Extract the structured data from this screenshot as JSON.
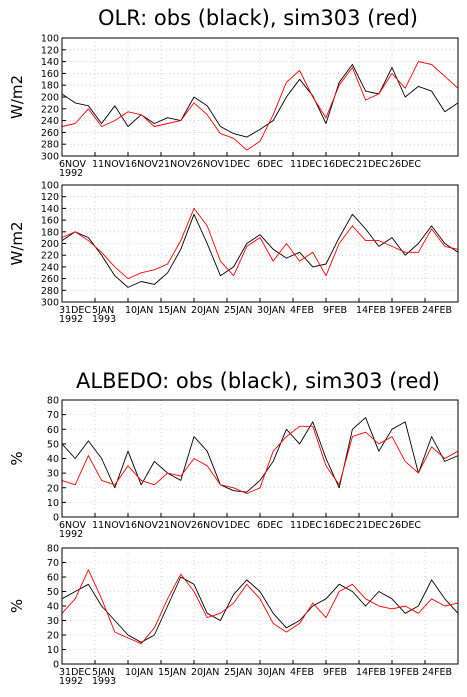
{
  "figure": {
    "olr_title": "OLR: obs (black), sim303 (red)",
    "albedo_title": "ALBEDO: obs (black), sim303 (red)",
    "colors": {
      "obs": "#000000",
      "sim": "#ff0000",
      "grid": "#b0b0b0"
    }
  },
  "chart_data": [
    {
      "type": "line",
      "panel": "OLR 1992 Nov-Dec",
      "ylabel": "W/m2",
      "yaxis_inverted": true,
      "ylim": [
        300,
        100
      ],
      "yticks": [
        100,
        120,
        140,
        160,
        180,
        200,
        220,
        240,
        260,
        280,
        300
      ],
      "xlim": [
        0,
        60
      ],
      "xticks": [
        {
          "x": 0,
          "label": "6NOV",
          "sub": "1992"
        },
        {
          "x": 5,
          "label": "11NOV"
        },
        {
          "x": 10,
          "label": "16NOV"
        },
        {
          "x": 15,
          "label": "21NOV"
        },
        {
          "x": 20,
          "label": "26NOV"
        },
        {
          "x": 25,
          "label": "1DEC"
        },
        {
          "x": 30,
          "label": "6DEC"
        },
        {
          "x": 35,
          "label": "11DEC"
        },
        {
          "x": 40,
          "label": "16DEC"
        },
        {
          "x": 45,
          "label": "21DEC"
        },
        {
          "x": 50,
          "label": "26DEC"
        }
      ],
      "grid": true,
      "x": [
        0,
        2,
        4,
        6,
        8,
        10,
        12,
        14,
        16,
        18,
        20,
        22,
        24,
        26,
        28,
        30,
        32,
        34,
        36,
        38,
        40,
        42,
        44,
        46,
        48,
        50,
        52,
        54,
        56,
        58,
        60
      ],
      "series": [
        {
          "color": "obs",
          "values": [
            195,
            210,
            215,
            245,
            215,
            250,
            230,
            245,
            235,
            240,
            200,
            215,
            250,
            262,
            268,
            255,
            240,
            200,
            170,
            198,
            245,
            175,
            145,
            190,
            195,
            150,
            200,
            182,
            190,
            225,
            210
          ]
        },
        {
          "color": "sim",
          "values": [
            250,
            245,
            220,
            250,
            240,
            225,
            230,
            250,
            245,
            240,
            210,
            230,
            262,
            270,
            290,
            275,
            230,
            175,
            155,
            200,
            235,
            180,
            150,
            205,
            195,
            160,
            185,
            140,
            145,
            165,
            185
          ]
        }
      ]
    },
    {
      "type": "line",
      "panel": "OLR 1993 Jan-Feb",
      "ylabel": "W/m2",
      "yaxis_inverted": true,
      "ylim": [
        300,
        100
      ],
      "yticks": [
        100,
        120,
        140,
        160,
        180,
        200,
        220,
        240,
        260,
        280,
        300
      ],
      "xlim": [
        0,
        60
      ],
      "xticks": [
        {
          "x": 0,
          "label": "31DEC",
          "sub": "1992"
        },
        {
          "x": 5,
          "label": "5JAN",
          "sub": "1993"
        },
        {
          "x": 10,
          "label": "10JAN"
        },
        {
          "x": 15,
          "label": "15JAN"
        },
        {
          "x": 20,
          "label": "20JAN"
        },
        {
          "x": 25,
          "label": "25JAN"
        },
        {
          "x": 30,
          "label": "30JAN"
        },
        {
          "x": 35,
          "label": "4FEB"
        },
        {
          "x": 40,
          "label": "9FEB"
        },
        {
          "x": 45,
          "label": "14FEB"
        },
        {
          "x": 50,
          "label": "19FEB"
        },
        {
          "x": 55,
          "label": "24FEB"
        }
      ],
      "grid": true,
      "x": [
        0,
        2,
        4,
        6,
        8,
        10,
        12,
        14,
        16,
        18,
        20,
        22,
        24,
        26,
        28,
        30,
        32,
        34,
        36,
        38,
        40,
        42,
        44,
        46,
        48,
        50,
        52,
        54,
        56,
        58,
        60
      ],
      "series": [
        {
          "color": "obs",
          "values": [
            195,
            180,
            190,
            220,
            255,
            275,
            265,
            270,
            250,
            210,
            150,
            200,
            255,
            240,
            200,
            185,
            210,
            225,
            215,
            240,
            235,
            190,
            150,
            175,
            205,
            190,
            220,
            200,
            170,
            200,
            215
          ]
        },
        {
          "color": "sim",
          "values": [
            190,
            180,
            195,
            215,
            240,
            260,
            250,
            245,
            235,
            195,
            140,
            170,
            230,
            255,
            205,
            190,
            230,
            200,
            230,
            215,
            255,
            200,
            170,
            195,
            195,
            205,
            215,
            215,
            175,
            205,
            210
          ]
        }
      ]
    },
    {
      "type": "line",
      "panel": "ALBEDO 1992 Nov-Dec",
      "ylabel": "%",
      "ylim": [
        0,
        80
      ],
      "yticks": [
        0,
        10,
        20,
        30,
        40,
        50,
        60,
        70,
        80
      ],
      "xlim": [
        0,
        60
      ],
      "xticks": [
        {
          "x": 0,
          "label": "6NOV",
          "sub": "1992"
        },
        {
          "x": 5,
          "label": "11NOV"
        },
        {
          "x": 10,
          "label": "16NOV"
        },
        {
          "x": 15,
          "label": "21NOV"
        },
        {
          "x": 20,
          "label": "26NOV"
        },
        {
          "x": 25,
          "label": "1DEC"
        },
        {
          "x": 30,
          "label": "6DEC"
        },
        {
          "x": 35,
          "label": "11DEC"
        },
        {
          "x": 40,
          "label": "16DEC"
        },
        {
          "x": 45,
          "label": "21DEC"
        },
        {
          "x": 50,
          "label": "26DEC"
        }
      ],
      "grid": true,
      "x": [
        0,
        2,
        4,
        6,
        8,
        10,
        12,
        14,
        16,
        18,
        20,
        22,
        24,
        26,
        28,
        30,
        32,
        34,
        36,
        38,
        40,
        42,
        44,
        46,
        48,
        50,
        52,
        54,
        56,
        58,
        60
      ],
      "series": [
        {
          "color": "obs",
          "values": [
            50,
            40,
            52,
            40,
            20,
            45,
            22,
            38,
            30,
            25,
            55,
            45,
            22,
            18,
            17,
            25,
            38,
            60,
            50,
            65,
            40,
            20,
            60,
            68,
            45,
            60,
            65,
            30,
            55,
            38,
            42
          ]
        },
        {
          "color": "sim",
          "values": [
            25,
            22,
            42,
            25,
            22,
            35,
            25,
            22,
            30,
            28,
            40,
            35,
            22,
            20,
            16,
            20,
            45,
            55,
            62,
            62,
            35,
            22,
            55,
            58,
            50,
            55,
            38,
            30,
            48,
            40,
            45
          ]
        }
      ]
    },
    {
      "type": "line",
      "panel": "ALBEDO 1993 Jan-Feb",
      "ylabel": "%",
      "ylim": [
        0,
        80
      ],
      "yticks": [
        0,
        10,
        20,
        30,
        40,
        50,
        60,
        70,
        80
      ],
      "xlim": [
        0,
        60
      ],
      "xticks": [
        {
          "x": 0,
          "label": "31DEC",
          "sub": "1992"
        },
        {
          "x": 5,
          "label": "5JAN",
          "sub": "1993"
        },
        {
          "x": 10,
          "label": "10JAN"
        },
        {
          "x": 15,
          "label": "15JAN"
        },
        {
          "x": 20,
          "label": "20JAN"
        },
        {
          "x": 25,
          "label": "25JAN"
        },
        {
          "x": 30,
          "label": "30JAN"
        },
        {
          "x": 35,
          "label": "4FEB"
        },
        {
          "x": 40,
          "label": "9FEB"
        },
        {
          "x": 45,
          "label": "14FEB"
        },
        {
          "x": 50,
          "label": "19FEB"
        },
        {
          "x": 55,
          "label": "24FEB"
        }
      ],
      "grid": true,
      "x": [
        0,
        2,
        4,
        6,
        8,
        10,
        12,
        14,
        16,
        18,
        20,
        22,
        24,
        26,
        28,
        30,
        32,
        34,
        36,
        38,
        40,
        42,
        44,
        46,
        48,
        50,
        52,
        54,
        56,
        58,
        60
      ],
      "series": [
        {
          "color": "obs",
          "values": [
            45,
            50,
            55,
            40,
            30,
            20,
            15,
            20,
            40,
            60,
            55,
            35,
            30,
            48,
            58,
            50,
            35,
            25,
            30,
            40,
            45,
            55,
            50,
            40,
            50,
            45,
            35,
            40,
            58,
            45,
            35
          ]
        },
        {
          "color": "sim",
          "values": [
            35,
            45,
            65,
            45,
            22,
            18,
            14,
            25,
            45,
            62,
            50,
            32,
            35,
            42,
            55,
            45,
            28,
            22,
            28,
            42,
            32,
            50,
            55,
            45,
            40,
            38,
            40,
            35,
            45,
            40,
            42
          ]
        }
      ]
    }
  ]
}
